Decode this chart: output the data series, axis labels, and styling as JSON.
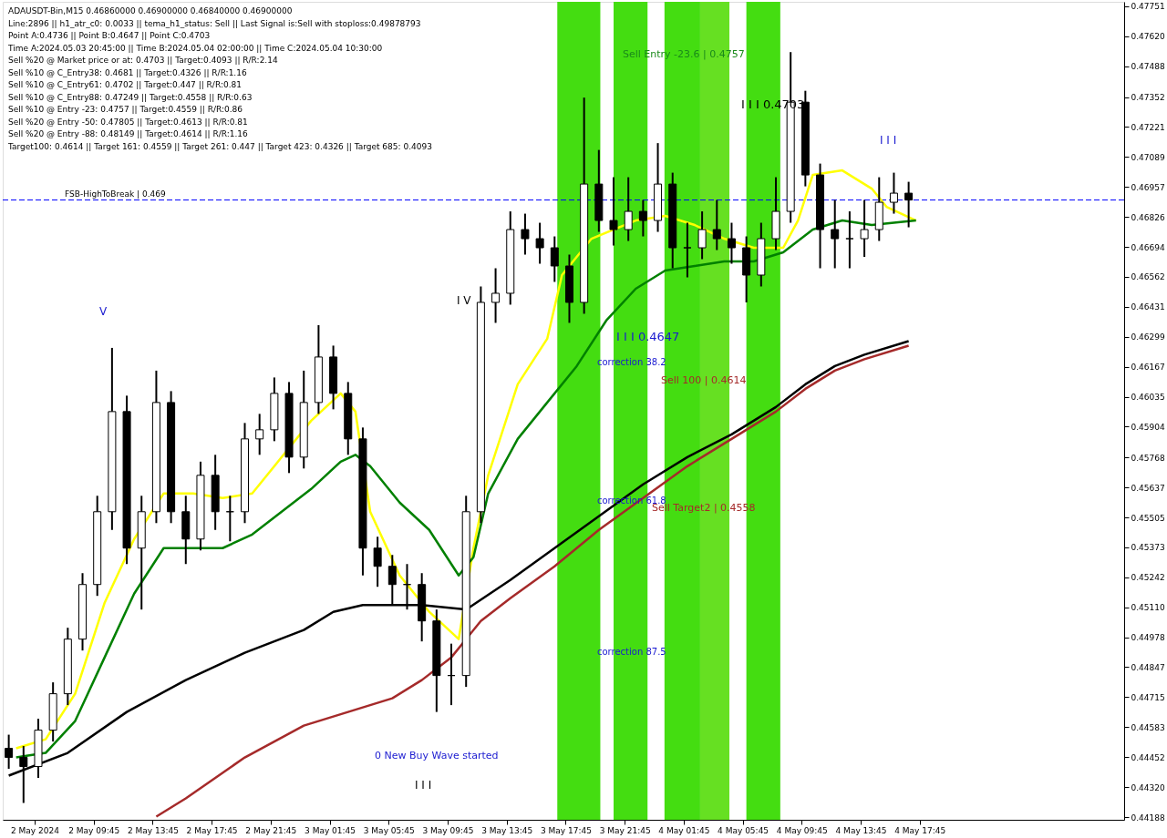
{
  "chart_data": {
    "type": "candlestick",
    "title": "ADAUSDT-Bin,M15  0.46860000 0.46900000 0.46840000 0.46900000",
    "annotations": [
      "Line:2896 || h1_atr_c0: 0.0033 || tema_h1_status: Sell || Last Signal is:Sell with stoploss:0.49878793",
      "Point A:0.4736 || Point B:0.4647 || Point C:0.4703",
      "Time A:2024.05.03 20:45:00 || Time B:2024.05.04 02:00:00 || Time C:2024.05.04 10:30:00",
      "Sell %20 @ Market price or at: 0.4703 || Target:0.4093 || R/R:2.14",
      "Sell %10 @ C_Entry38: 0.4681 || Target:0.4326 || R/R:1.16",
      "Sell %10 @ C_Entry61: 0.4702 || Target:0.447 || R/R:0.81",
      "Sell %10 @ C_Entry88: 0.47249 || Target:0.4558 || R/R:0.63",
      "Sell %10 @ Entry -23: 0.4757 || Target:0.4559 || R/R:0.86",
      "Sell %20 @ Entry -50: 0.47805 || Target:0.4613 || R/R:0.81",
      "Sell %20 @ Entry -88: 0.48149 || Target:0.4614 || R/R:1.16",
      "Target100: 0.4614 || Target 161: 0.4559 || Target 261: 0.447 || Target 423: 0.4326 || Target 685: 0.4093",
      "Sell Entry -23.6 | 0.4757",
      "I I I 0.4703",
      "I I I 0.4647",
      "correction 38.2",
      "Sell 100 | 0.4614",
      "correction 61.8",
      "Sell Target2 | 0.4558",
      "correction 87.5",
      "0 New Buy Wave started",
      "I I I",
      "V",
      "I V",
      "I I I"
    ],
    "x": [
      "2024-05-02T04:00",
      "2024-05-02T05:00",
      "2024-05-02T06:00",
      "2024-05-02T07:00",
      "2024-05-02T08:00",
      "2024-05-02T09:00",
      "2024-05-02T10:00",
      "2024-05-02T11:00",
      "2024-05-02T12:00",
      "2024-05-02T13:00",
      "2024-05-02T14:00",
      "2024-05-02T15:00",
      "2024-05-02T16:00",
      "2024-05-02T17:00",
      "2024-05-02T18:00",
      "2024-05-02T19:00",
      "2024-05-02T20:00",
      "2024-05-02T21:00",
      "2024-05-02T22:00",
      "2024-05-02T23:00",
      "2024-05-03T00:00",
      "2024-05-03T01:00",
      "2024-05-03T02:00",
      "2024-05-03T03:00",
      "2024-05-03T04:00",
      "2024-05-03T05:00",
      "2024-05-03T06:00",
      "2024-05-03T07:00",
      "2024-05-03T08:00",
      "2024-05-03T09:00",
      "2024-05-03T10:00",
      "2024-05-03T11:00",
      "2024-05-03T12:00",
      "2024-05-03T13:00",
      "2024-05-03T14:00",
      "2024-05-03T15:00",
      "2024-05-03T16:00",
      "2024-05-03T17:00",
      "2024-05-03T18:00",
      "2024-05-03T19:00",
      "2024-05-03T20:00",
      "2024-05-03T21:00",
      "2024-05-03T22:00",
      "2024-05-03T23:00",
      "2024-05-04T00:00",
      "2024-05-04T01:00",
      "2024-05-04T02:00",
      "2024-05-04T03:00",
      "2024-05-04T04:00",
      "2024-05-04T05:00",
      "2024-05-04T06:00",
      "2024-05-04T07:00",
      "2024-05-04T08:00",
      "2024-05-04T09:00",
      "2024-05-04T10:00",
      "2024-05-04T11:00",
      "2024-05-04T12:00",
      "2024-05-04T13:00",
      "2024-05-04T14:00",
      "2024-05-04T15:00",
      "2024-05-04T16:00",
      "2024-05-04T17:00"
    ],
    "ohlc": [
      [
        0.4449,
        0.4455,
        0.444,
        0.4445
      ],
      [
        0.4445,
        0.445,
        0.4425,
        0.4441
      ],
      [
        0.4441,
        0.4462,
        0.4436,
        0.4457
      ],
      [
        0.4457,
        0.4478,
        0.4452,
        0.4473
      ],
      [
        0.4473,
        0.4502,
        0.4468,
        0.4497
      ],
      [
        0.4497,
        0.4526,
        0.4492,
        0.4521
      ],
      [
        0.4521,
        0.456,
        0.4516,
        0.4553
      ],
      [
        0.4553,
        0.4625,
        0.4545,
        0.4597
      ],
      [
        0.4597,
        0.4604,
        0.453,
        0.4537
      ],
      [
        0.4537,
        0.456,
        0.451,
        0.4553
      ],
      [
        0.4553,
        0.4615,
        0.4548,
        0.4601
      ],
      [
        0.4601,
        0.4606,
        0.4548,
        0.4553
      ],
      [
        0.4553,
        0.456,
        0.453,
        0.4541
      ],
      [
        0.4541,
        0.4575,
        0.4536,
        0.4569
      ],
      [
        0.4569,
        0.4578,
        0.4545,
        0.4553
      ],
      [
        0.4553,
        0.456,
        0.454,
        0.4553
      ],
      [
        0.4553,
        0.4592,
        0.4548,
        0.4585
      ],
      [
        0.4585,
        0.4596,
        0.4578,
        0.4589
      ],
      [
        0.4589,
        0.4612,
        0.4584,
        0.4605
      ],
      [
        0.4605,
        0.461,
        0.457,
        0.4577
      ],
      [
        0.4577,
        0.4615,
        0.4572,
        0.4601
      ],
      [
        0.4601,
        0.4635,
        0.4596,
        0.4621
      ],
      [
        0.4621,
        0.4626,
        0.4598,
        0.4605
      ],
      [
        0.4605,
        0.461,
        0.4578,
        0.4585
      ],
      [
        0.4585,
        0.459,
        0.4525,
        0.4537
      ],
      [
        0.4537,
        0.4542,
        0.452,
        0.4529
      ],
      [
        0.4529,
        0.4534,
        0.4512,
        0.4521
      ],
      [
        0.4521,
        0.453,
        0.451,
        0.4521
      ],
      [
        0.4521,
        0.4526,
        0.4496,
        0.4505
      ],
      [
        0.4505,
        0.451,
        0.4465,
        0.4481
      ],
      [
        0.4481,
        0.4495,
        0.4468,
        0.4481
      ],
      [
        0.4481,
        0.456,
        0.4476,
        0.4553
      ],
      [
        0.4553,
        0.4652,
        0.4548,
        0.4645
      ],
      [
        0.4645,
        0.466,
        0.4636,
        0.4649
      ],
      [
        0.4649,
        0.4685,
        0.4644,
        0.4677
      ],
      [
        0.4677,
        0.4684,
        0.4666,
        0.4673
      ],
      [
        0.4673,
        0.468,
        0.4662,
        0.4669
      ],
      [
        0.4669,
        0.4674,
        0.4654,
        0.4661
      ],
      [
        0.4661,
        0.4666,
        0.4636,
        0.4645
      ],
      [
        0.4645,
        0.4735,
        0.464,
        0.4697
      ],
      [
        0.4697,
        0.4712,
        0.4676,
        0.4681
      ],
      [
        0.4681,
        0.47,
        0.467,
        0.4677
      ],
      [
        0.4677,
        0.47,
        0.4672,
        0.4685
      ],
      [
        0.4685,
        0.469,
        0.4674,
        0.4681
      ],
      [
        0.4681,
        0.4715,
        0.4676,
        0.4697
      ],
      [
        0.4697,
        0.4702,
        0.466,
        0.4669
      ],
      [
        0.4669,
        0.468,
        0.4656,
        0.4669
      ],
      [
        0.4669,
        0.4685,
        0.4664,
        0.4677
      ],
      [
        0.4677,
        0.469,
        0.4668,
        0.4673
      ],
      [
        0.4673,
        0.468,
        0.4662,
        0.4669
      ],
      [
        0.4669,
        0.4674,
        0.4645,
        0.4657
      ],
      [
        0.4657,
        0.468,
        0.4652,
        0.4673
      ],
      [
        0.4673,
        0.47,
        0.4668,
        0.4685
      ],
      [
        0.4685,
        0.4755,
        0.468,
        0.4733
      ],
      [
        0.4733,
        0.4738,
        0.4696,
        0.4701
      ],
      [
        0.4701,
        0.4706,
        0.466,
        0.4677
      ],
      [
        0.4677,
        0.469,
        0.466,
        0.4673
      ],
      [
        0.4673,
        0.4685,
        0.466,
        0.4673
      ],
      [
        0.4673,
        0.469,
        0.4665,
        0.4677
      ],
      [
        0.4677,
        0.47,
        0.4672,
        0.4689
      ],
      [
        0.4689,
        0.4702,
        0.4684,
        0.4693
      ],
      [
        0.4693,
        0.4698,
        0.4678,
        0.469
      ]
    ],
    "color": "#000000",
    "series": [
      {
        "type": "line",
        "color": "#ffff00",
        "x": [
          "2024-05-02T04:30",
          "2024-05-02T06:30",
          "2024-05-02T08:30",
          "2024-05-02T10:30",
          "2024-05-02T12:30",
          "2024-05-02T14:30",
          "2024-05-02T16:30",
          "2024-05-02T18:30",
          "2024-05-02T20:30",
          "2024-05-02T22:30",
          "2024-05-03T00:30",
          "2024-05-03T02:30",
          "2024-05-03T03:30",
          "2024-05-03T04:30",
          "2024-05-03T06:30",
          "2024-05-03T08:30",
          "2024-05-03T10:30",
          "2024-05-03T11:30",
          "2024-05-03T12:30",
          "2024-05-03T14:30",
          "2024-05-03T16:30",
          "2024-05-03T17:30",
          "2024-05-03T19:30",
          "2024-05-03T22:30",
          "2024-05-04T00:30",
          "2024-05-04T02:30",
          "2024-05-04T04:30",
          "2024-05-04T06:30",
          "2024-05-04T08:30",
          "2024-05-04T09:30",
          "2024-05-04T10:30",
          "2024-05-04T12:30",
          "2024-05-04T14:30",
          "2024-05-04T15:30",
          "2024-05-04T17:30"
        ],
        "values": [
          0.4449,
          0.4453,
          0.4473,
          0.4513,
          0.4541,
          0.4561,
          0.4561,
          0.4559,
          0.4561,
          0.4577,
          0.4593,
          0.4605,
          0.4597,
          0.4553,
          0.4525,
          0.4509,
          0.4497,
          0.4537,
          0.4569,
          0.4609,
          0.4629,
          0.4657,
          0.4673,
          0.4681,
          0.4683,
          0.4679,
          0.4673,
          0.4669,
          0.4669,
          0.4681,
          0.4701,
          0.4703,
          0.4695,
          0.4687,
          0.4681
        ]
      },
      {
        "type": "line",
        "color": "#008000",
        "x": [
          "2024-05-02T04:30",
          "2024-05-02T06:30",
          "2024-05-02T08:30",
          "2024-05-02T10:30",
          "2024-05-02T12:30",
          "2024-05-02T14:30",
          "2024-05-02T16:30",
          "2024-05-02T18:30",
          "2024-05-02T20:30",
          "2024-05-02T22:30",
          "2024-05-03T00:30",
          "2024-05-03T02:30",
          "2024-05-03T03:30",
          "2024-05-03T04:30",
          "2024-05-03T06:30",
          "2024-05-03T08:30",
          "2024-05-03T10:30",
          "2024-05-03T11:30",
          "2024-05-03T12:30",
          "2024-05-03T14:30",
          "2024-05-03T16:30",
          "2024-05-03T18:30",
          "2024-05-03T20:30",
          "2024-05-03T22:30",
          "2024-05-04T00:30",
          "2024-05-04T02:30",
          "2024-05-04T04:30",
          "2024-05-04T06:30",
          "2024-05-04T08:30",
          "2024-05-04T10:30",
          "2024-05-04T12:30",
          "2024-05-04T14:30",
          "2024-05-04T17:30"
        ],
        "values": [
          0.4445,
          0.4447,
          0.4461,
          0.4489,
          0.4517,
          0.4537,
          0.4537,
          0.4537,
          0.4543,
          0.4553,
          0.4563,
          0.4575,
          0.4578,
          0.4573,
          0.4557,
          0.4545,
          0.4525,
          0.4533,
          0.4561,
          0.4585,
          0.4601,
          0.4617,
          0.4637,
          0.4651,
          0.4659,
          0.4661,
          0.4663,
          0.4663,
          0.4667,
          0.4677,
          0.4681,
          0.4679,
          0.4681
        ]
      },
      {
        "type": "line",
        "color": "#000000",
        "x": [
          "2024-05-02T04:00",
          "2024-05-02T08:00",
          "2024-05-02T12:00",
          "2024-05-02T16:00",
          "2024-05-02T20:00",
          "2024-05-03T00:00",
          "2024-05-03T02:00",
          "2024-05-03T04:00",
          "2024-05-03T08:00",
          "2024-05-03T11:00",
          "2024-05-03T14:00",
          "2024-05-03T17:00",
          "2024-05-03T20:00",
          "2024-05-03T23:00",
          "2024-05-04T02:00",
          "2024-05-04T05:00",
          "2024-05-04T08:00",
          "2024-05-04T10:00",
          "2024-05-04T12:00",
          "2024-05-04T14:00",
          "2024-05-04T17:00"
        ],
        "values": [
          0.4437,
          0.4447,
          0.4465,
          0.4479,
          0.4491,
          0.4501,
          0.4509,
          0.4512,
          0.4512,
          0.451,
          0.4523,
          0.4537,
          0.4551,
          0.4565,
          0.4577,
          0.4587,
          0.4599,
          0.4609,
          0.4617,
          0.4622,
          0.4628
        ]
      },
      {
        "type": "line",
        "color": "#a52a2a",
        "x": [
          "2024-05-02T14:00",
          "2024-05-02T16:00",
          "2024-05-02T20:00",
          "2024-05-03T00:00",
          "2024-05-03T03:00",
          "2024-05-03T06:00",
          "2024-05-03T08:00",
          "2024-05-03T10:00",
          "2024-05-03T12:00",
          "2024-05-03T14:00",
          "2024-05-03T17:00",
          "2024-05-03T20:00",
          "2024-05-03T23:00",
          "2024-05-04T02:00",
          "2024-05-04T05:00",
          "2024-05-04T08:00",
          "2024-05-04T10:00",
          "2024-05-04T12:00",
          "2024-05-04T14:00",
          "2024-05-04T17:00"
        ],
        "values": [
          0.4419,
          0.4427,
          0.4445,
          0.4459,
          0.4465,
          0.4471,
          0.4479,
          0.4489,
          0.4505,
          0.4515,
          0.4529,
          0.4545,
          0.4559,
          0.4573,
          0.4585,
          0.4597,
          0.4607,
          0.4615,
          0.462,
          0.4626
        ]
      }
    ],
    "bands": [
      {
        "axis": "x",
        "from": "2024-05-03T17:11",
        "to": "2024-05-03T20:06",
        "color": "#44dd11"
      },
      {
        "axis": "x",
        "from": "2024-05-03T21:00",
        "to": "2024-05-03T23:18",
        "color": "#44dd11"
      },
      {
        "axis": "x",
        "from": "2024-05-04T00:27",
        "to": "2024-05-04T02:52",
        "color": "#44dd11"
      },
      {
        "axis": "x",
        "from": "2024-05-04T02:52",
        "to": "2024-05-04T04:51",
        "color": "#66e022"
      },
      {
        "axis": "x",
        "from": "2024-05-04T06:00",
        "to": "2024-05-04T08:18",
        "color": "#44dd11"
      }
    ],
    "ref_lines": [
      {
        "axis": "y",
        "value": 0.469,
        "label": "FSB-HighToBreak | 0.469",
        "color": "#0000ff",
        "line_style": "dashed"
      }
    ],
    "xlim": [
      "2024-05-02T03:54",
      "2024-05-05T07:18"
    ],
    "ylim": [
      0.44176,
      0.47771
    ],
    "xticks": [
      {
        "value": "2024-05-02T05:45",
        "label": "2 May 2024"
      },
      {
        "value": "2024-05-02T09:45",
        "label": "2 May 09:45"
      },
      {
        "value": "2024-05-02T13:45",
        "label": "2 May 13:45"
      },
      {
        "value": "2024-05-02T17:45",
        "label": "2 May 17:45"
      },
      {
        "value": "2024-05-02T21:45",
        "label": "2 May 21:45"
      },
      {
        "value": "2024-05-03T01:45",
        "label": "3 May 01:45"
      },
      {
        "value": "2024-05-03T05:45",
        "label": "3 May 05:45"
      },
      {
        "value": "2024-05-03T09:45",
        "label": "3 May 09:45"
      },
      {
        "value": "2024-05-03T13:45",
        "label": "3 May 13:45"
      },
      {
        "value": "2024-05-03T17:45",
        "label": "3 May 17:45"
      },
      {
        "value": "2024-05-03T21:45",
        "label": "3 May 21:45"
      },
      {
        "value": "2024-05-04T01:45",
        "label": "4 May 01:45"
      },
      {
        "value": "2024-05-04T05:45",
        "label": "4 May 05:45"
      },
      {
        "value": "2024-05-04T09:45",
        "label": "4 May 09:45"
      },
      {
        "value": "2024-05-04T13:45",
        "label": "4 May 13:45"
      },
      {
        "value": "2024-05-04T17:45",
        "label": "4 May 17:45"
      }
    ],
    "yticks": [
      0.47751,
      {
        "value": 0.4762,
        "label": "0.47620"
      },
      0.47488,
      0.47352,
      0.47221,
      0.47089,
      0.46957,
      0.46826,
      0.46694,
      0.46562,
      0.46431,
      0.46299,
      0.46167,
      0.46035,
      0.45904,
      0.45768,
      0.45637,
      0.45505,
      0.45373,
      0.45242,
      {
        "value": 0.4511,
        "label": "0.45110"
      },
      0.44978,
      0.44847,
      0.44715,
      0.44583,
      0.44452,
      {
        "value": 0.4432,
        "label": "0.44320"
      },
      0.44188
    ],
    "grid": false,
    "legend": false
  }
}
